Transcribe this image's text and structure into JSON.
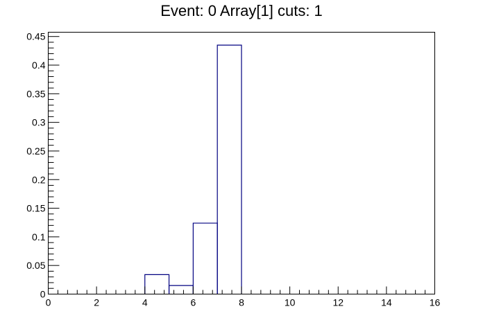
{
  "chart_data": {
    "type": "bar",
    "title": "Event: 0 Array[1] cuts: 1",
    "xlabel": "",
    "ylabel": "",
    "xlim": [
      0,
      16
    ],
    "ylim": [
      0,
      0.4575
    ],
    "bin_edges": [
      0,
      1,
      2,
      3,
      4,
      5,
      6,
      7,
      8,
      9,
      10,
      11,
      12,
      13,
      14,
      15,
      16
    ],
    "values": [
      0,
      0,
      0,
      0,
      0.034,
      0.015,
      0.124,
      0.435,
      0,
      0,
      0,
      0,
      0,
      0,
      0,
      0
    ],
    "x_ticks": [
      0,
      2,
      4,
      6,
      8,
      10,
      12,
      14,
      16
    ],
    "x_tick_labels": [
      "0",
      "2",
      "4",
      "6",
      "8",
      "10",
      "12",
      "14",
      "16"
    ],
    "y_ticks": [
      0,
      0.05,
      0.1,
      0.15,
      0.2,
      0.25,
      0.3,
      0.35,
      0.4,
      0.45
    ],
    "y_tick_labels": [
      "0",
      "0.05",
      "0.1",
      "0.15",
      "0.2",
      "0.25",
      "0.3",
      "0.35",
      "0.4",
      "0.45"
    ],
    "grid": false,
    "legend": false,
    "line_color": "#000080"
  }
}
